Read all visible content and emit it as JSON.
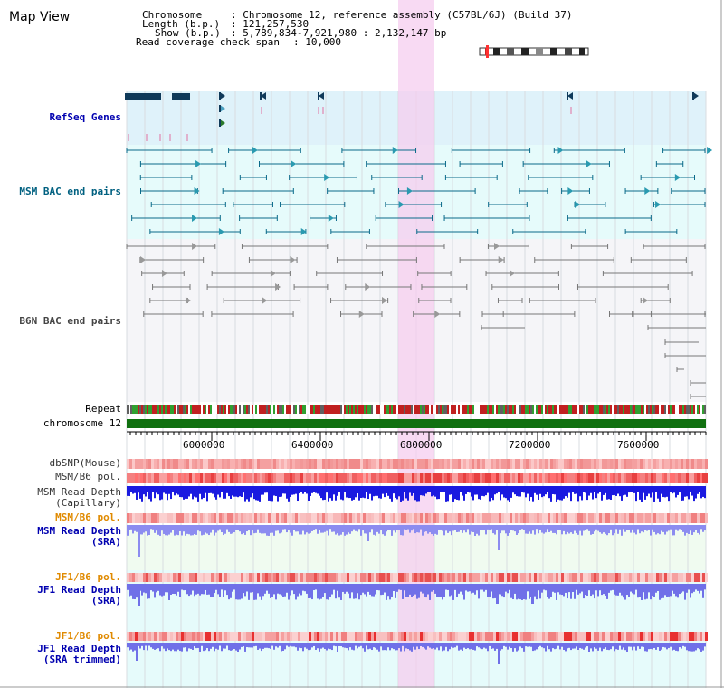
{
  "title": "Map View",
  "info": {
    "chromosome_key": "Chromosome",
    "chromosome_val": ": Chromosome 12, reference assembly (C57BL/6J) (Build 37)",
    "length_key": "Length (b.p.)",
    "length_val": ": 121,257,530",
    "show_key": "Show (b.p.)",
    "show_val": ": 5,789,834-7,921,980 : 2,132,147 bp",
    "span_key": "Read coverage check span",
    "span_val": ": 10,000"
  },
  "tracks": {
    "refseq": "RefSeq Genes",
    "msm_bac": "MSM BAC end pairs",
    "b6n_bac": "B6N BAC end pairs",
    "repeat": "Repeat",
    "chromosome": "chromosome 12",
    "dbsnp": "dbSNP(Mouse)",
    "msm_b6_pol": "MSM/B6 pol.",
    "msm_depth_cap_1": "MSM Read Depth",
    "msm_depth_cap_2": "(Capillary)",
    "msm_b6_pol_2": "MSM/B6 pol.",
    "msm_depth_sra_1": "MSM Read Depth",
    "msm_depth_sra_2": "(SRA)",
    "jf1_b6_pol": "JF1/B6 pol.",
    "jf1_depth_sra_1": "JF1 Read Depth",
    "jf1_depth_sra_2": "(SRA)",
    "jf1_b6_pol_2": "JF1/B6 pol.",
    "jf1_depth_trim_1": "JF1 Read Depth",
    "jf1_depth_trim_2": "(SRA trimmed)"
  },
  "axis": {
    "ticks": [
      "6000000",
      "6400000",
      "6800000",
      "7200000",
      "7600000"
    ]
  },
  "colors": {
    "highlight": "#f5d2f0",
    "refseq_bg": "#dff0f8",
    "bac_bg": "#e8fafa",
    "chromosome_bar": "#107010",
    "depth_blue": "#2a2ae0",
    "depth_lavender": "#8888f0"
  }
}
